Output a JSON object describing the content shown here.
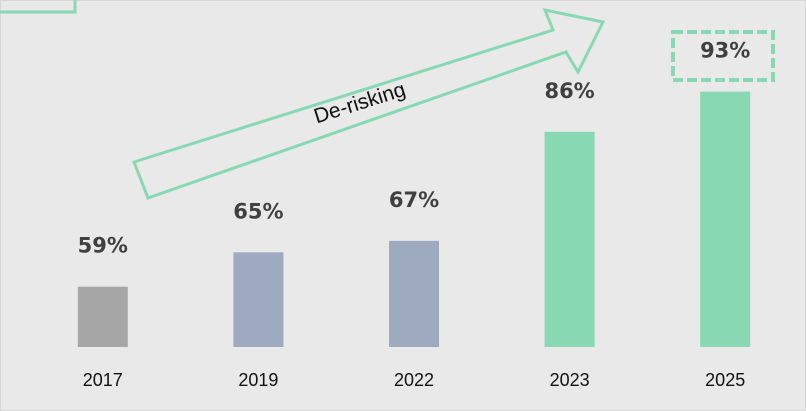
{
  "chart_data": {
    "type": "bar",
    "annotation": "De-risking",
    "categories": [
      "2017",
      "2019",
      "2022",
      "2023",
      "2025"
    ],
    "values": [
      59,
      65,
      67,
      86,
      93
    ],
    "value_labels": [
      "59%",
      "65%",
      "67%",
      "86%",
      "93%"
    ],
    "colors": [
      "#a6a6a6",
      "#9eaabf",
      "#9eaabf",
      "#88d8b4",
      "#88d8b4"
    ],
    "ylim": [
      48.5,
      102
    ],
    "grid": false
  }
}
